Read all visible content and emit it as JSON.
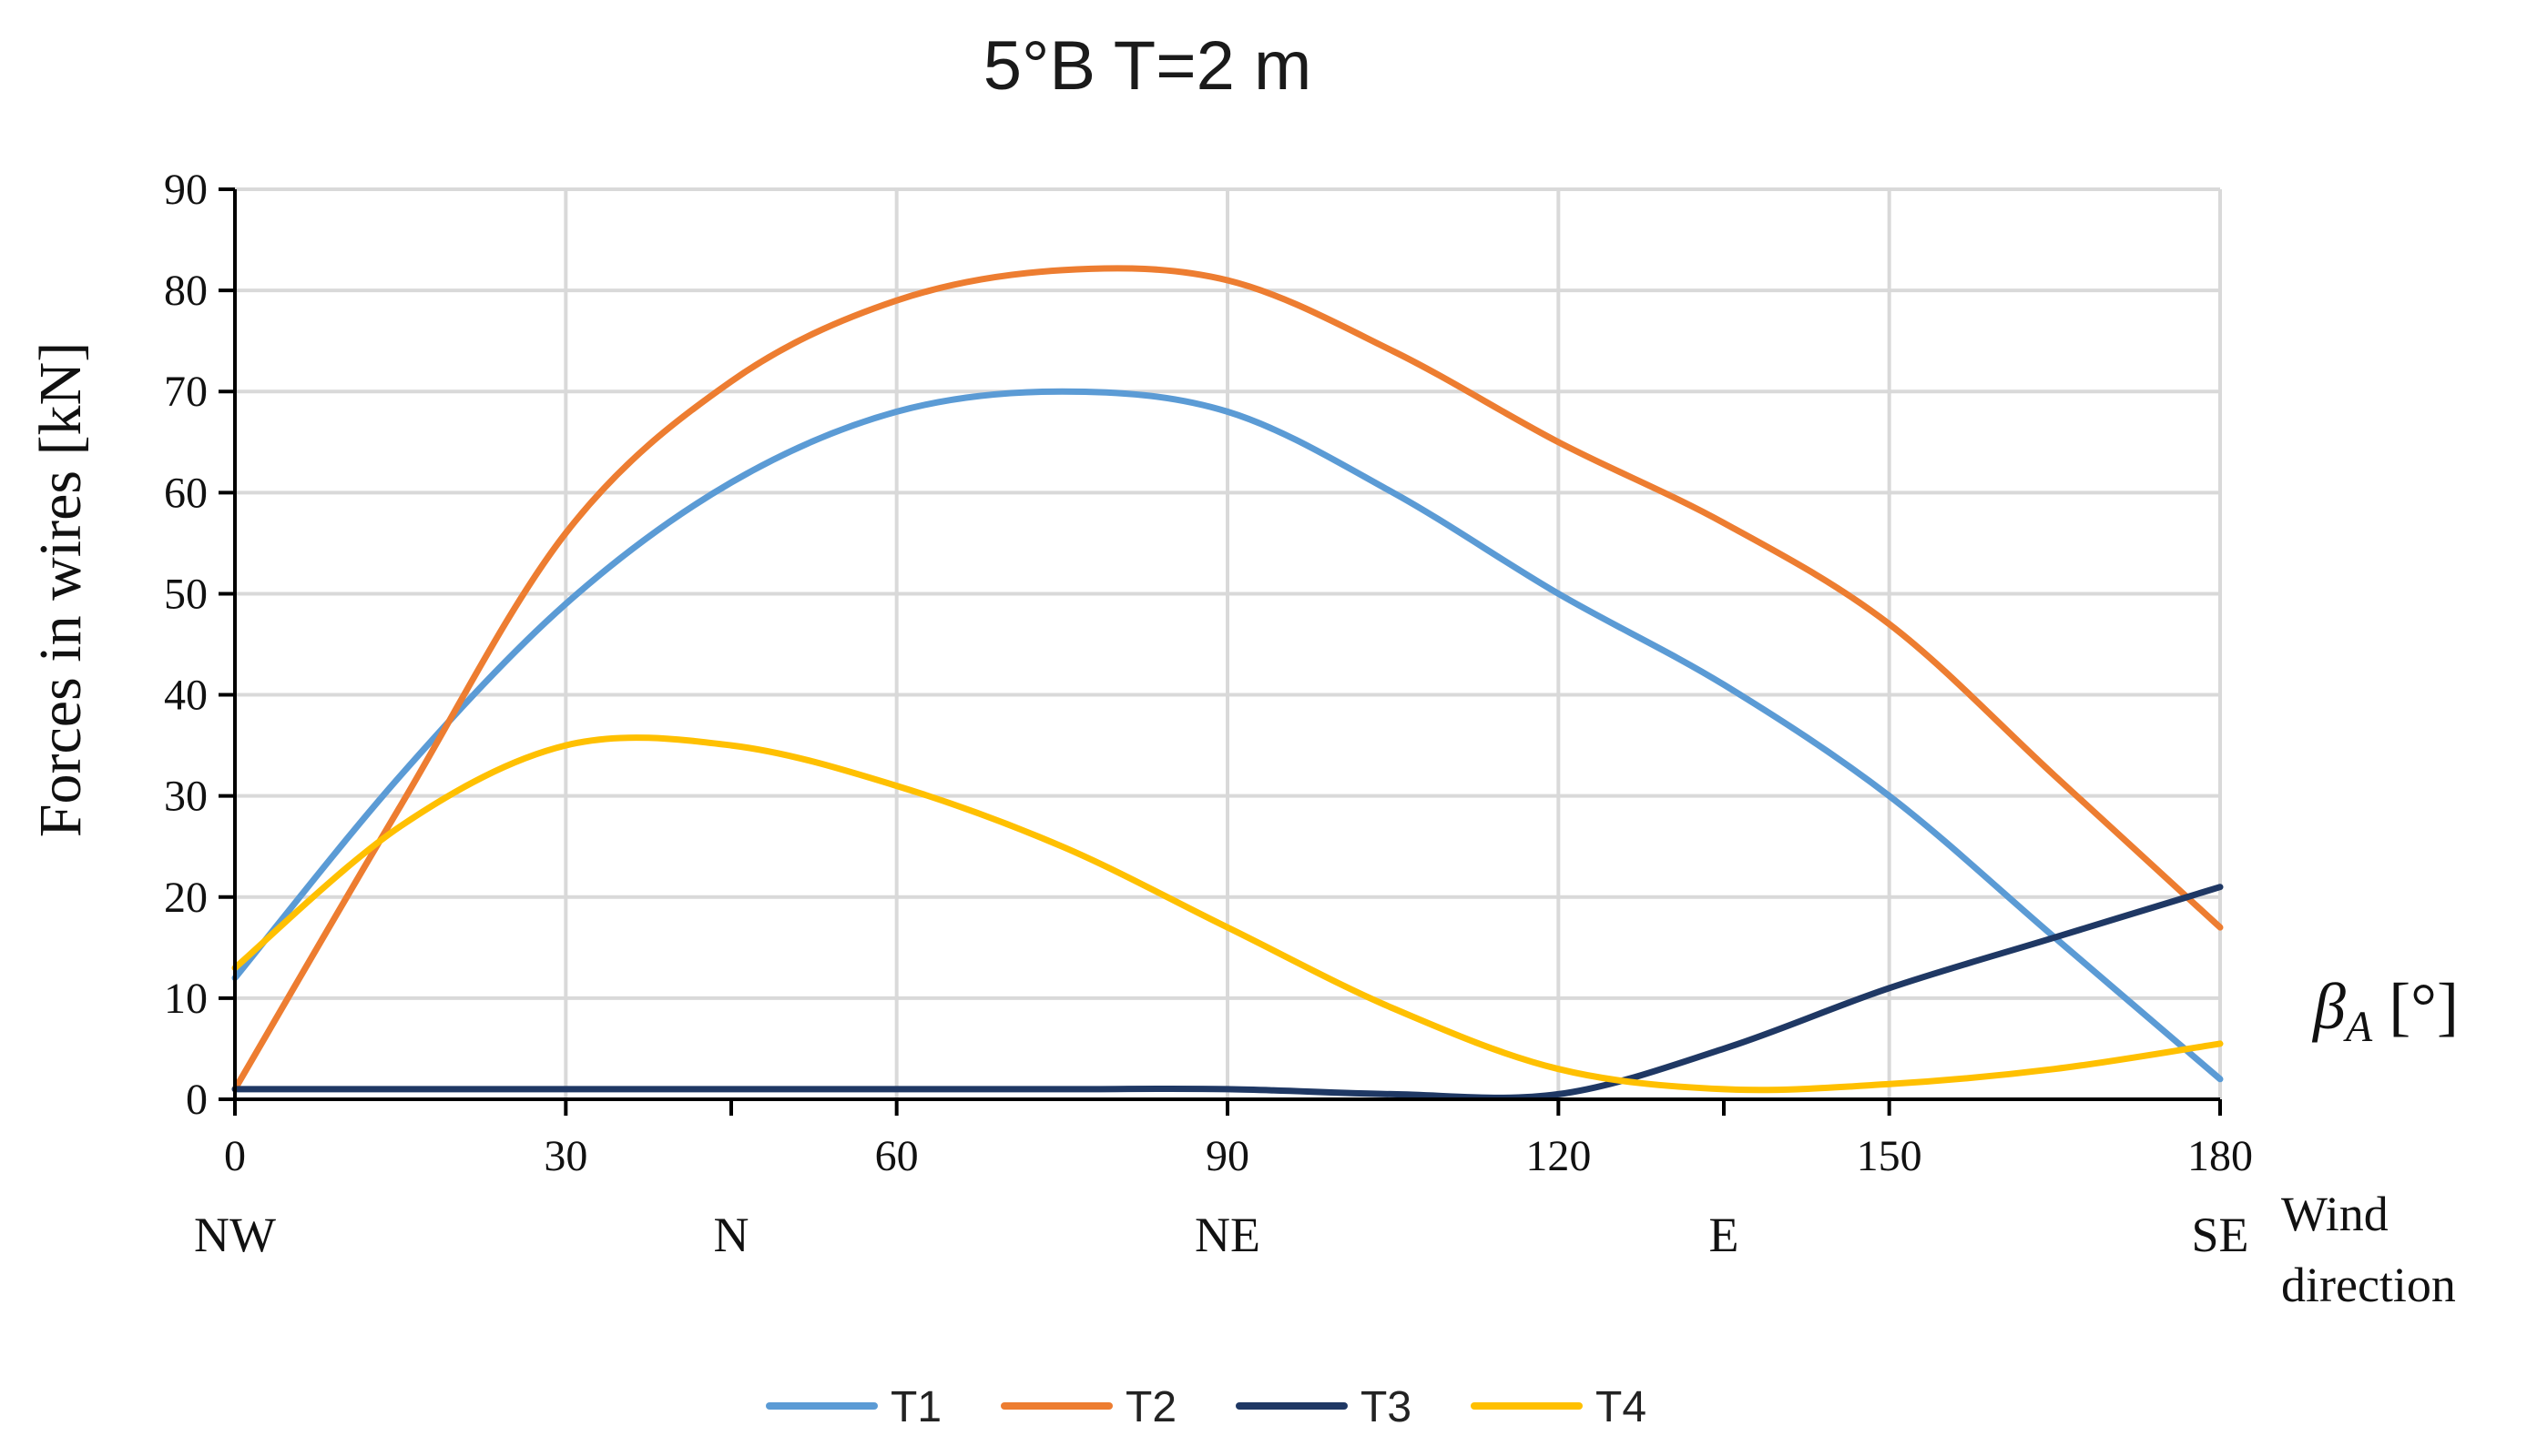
{
  "chart_data": {
    "type": "line",
    "title": "5°B T=2 m",
    "ylabel": "Forces in wires [kN]",
    "xlabel_symbol": "β",
    "xlabel_subscript": "A",
    "xlabel_unit": " [°]",
    "xlim": [
      0,
      180
    ],
    "ylim": [
      0,
      90
    ],
    "xticks": [
      0,
      30,
      60,
      90,
      120,
      150,
      180
    ],
    "yticks": [
      0,
      10,
      20,
      30,
      40,
      50,
      60,
      70,
      80,
      90
    ],
    "minor_xticks": [
      45,
      135
    ],
    "grid": true,
    "legend_position": "bottom",
    "direction_title": [
      "Wind",
      "direction"
    ],
    "directions": [
      {
        "label": "NW",
        "x": 0
      },
      {
        "label": "N",
        "x": 45
      },
      {
        "label": "NE",
        "x": 90
      },
      {
        "label": "E",
        "x": 135
      },
      {
        "label": "SE",
        "x": 180
      }
    ],
    "x": [
      0,
      15,
      30,
      45,
      60,
      75,
      90,
      105,
      120,
      135,
      150,
      165,
      180
    ],
    "series": [
      {
        "name": "T1",
        "color": "#5b9bd5",
        "values": [
          12,
          32,
          49,
          61,
          68,
          70,
          68,
          60,
          50,
          41,
          30,
          16,
          2
        ]
      },
      {
        "name": "T2",
        "color": "#ed7d31",
        "values": [
          1,
          29,
          56,
          71,
          79,
          82,
          81,
          74,
          65,
          57,
          47,
          32,
          17
        ]
      },
      {
        "name": "T3",
        "color": "#1f3864",
        "values": [
          1,
          1,
          1,
          1,
          1,
          1,
          1,
          0.5,
          0.5,
          5,
          11,
          16,
          21
        ]
      },
      {
        "name": "T4",
        "color": "#ffc000",
        "values": [
          13,
          27,
          35,
          35,
          31,
          25,
          17,
          9,
          3,
          1,
          1.5,
          3,
          5.5
        ]
      }
    ]
  }
}
